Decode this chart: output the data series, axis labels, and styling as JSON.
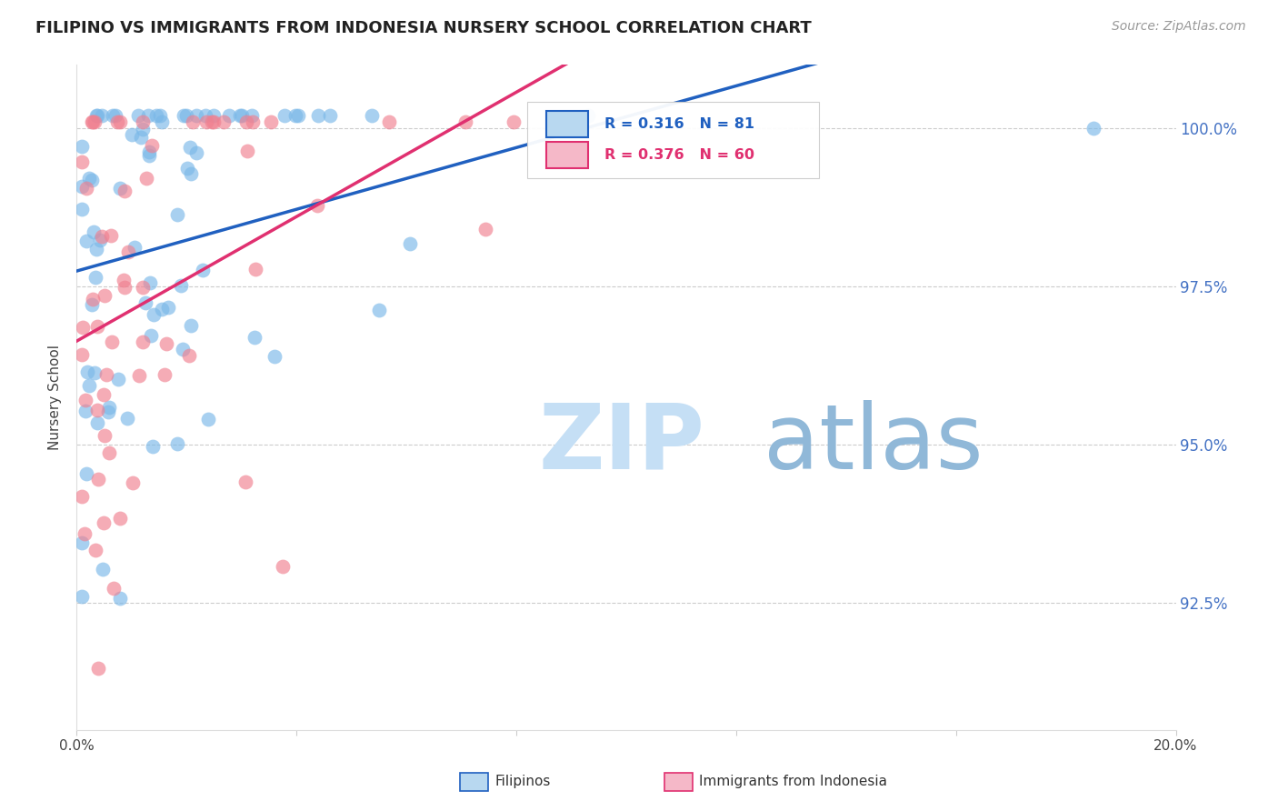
{
  "title": "FILIPINO VS IMMIGRANTS FROM INDONESIA NURSERY SCHOOL CORRELATION CHART",
  "source": "Source: ZipAtlas.com",
  "ylabel": "Nursery School",
  "ytick_labels": [
    "100.0%",
    "97.5%",
    "95.0%",
    "92.5%"
  ],
  "ytick_values": [
    1.0,
    0.975,
    0.95,
    0.925
  ],
  "xmin": 0.0,
  "xmax": 0.2,
  "ymin": 0.905,
  "ymax": 1.01,
  "filipino_R": 0.316,
  "filipino_N": 81,
  "indonesia_R": 0.376,
  "indonesia_N": 60,
  "filipino_color": "#7ab8e8",
  "indonesia_color": "#f08090",
  "filipino_line_color": "#2060c0",
  "indonesia_line_color": "#e03070",
  "watermark_zip": "ZIP",
  "watermark_atlas": "atlas",
  "watermark_color_zip": "#c5dff5",
  "watermark_color_atlas": "#90b8d8",
  "legend_box_color_filipino": "#b8d8f0",
  "legend_box_color_indonesia": "#f5b8c8",
  "filipino_seed": 101,
  "indonesia_seed": 202
}
